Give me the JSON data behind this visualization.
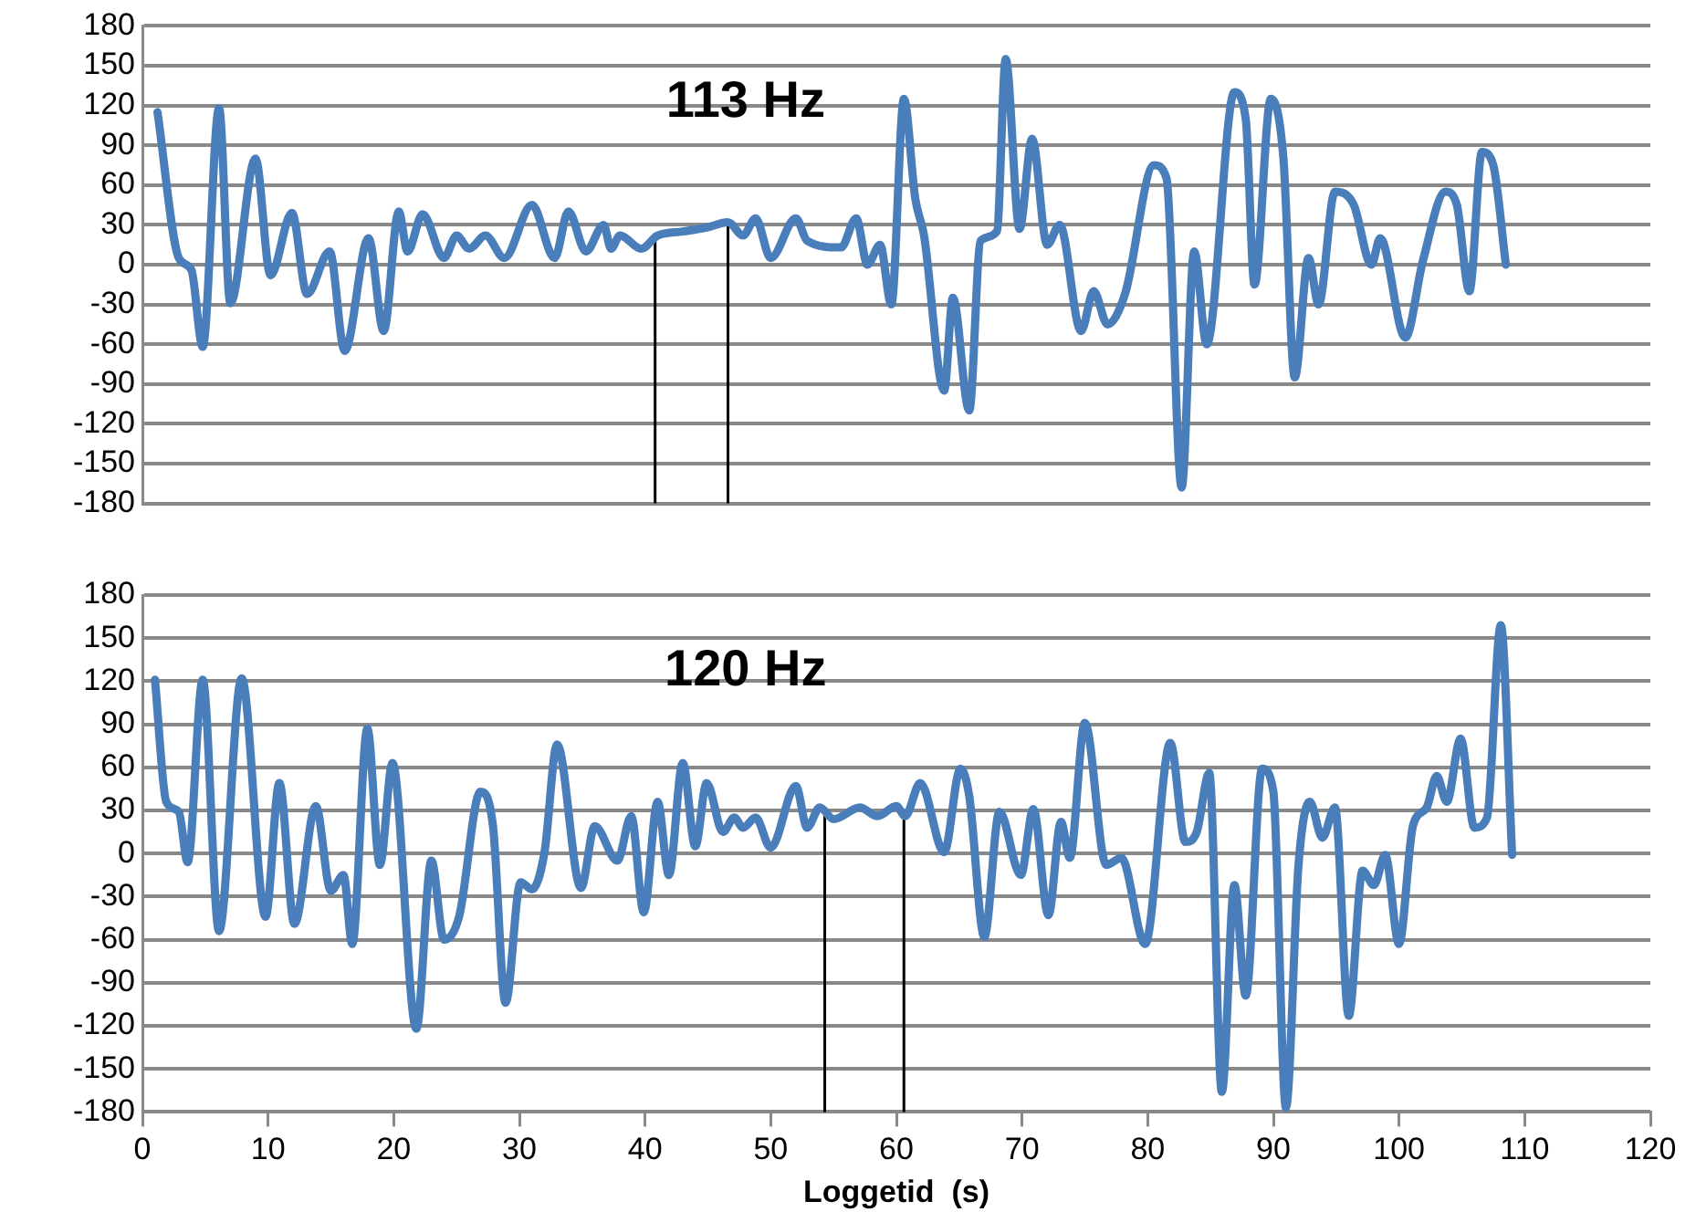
{
  "chart_data": [
    {
      "type": "line",
      "title": "113 Hz",
      "color": "#4a7ebb",
      "x": [
        1.2,
        2.9,
        3.9,
        4.8,
        6.1,
        7,
        9,
        10.2,
        11.9,
        13.1,
        14.9,
        16.1,
        18,
        19.2,
        20.4,
        21.1,
        22.3,
        24,
        25,
        26,
        27.3,
        28.8,
        31,
        32.8,
        33.9,
        35.3,
        36.7,
        37.3,
        38,
        39.7,
        41,
        43,
        44.9,
        46.6,
        47.8,
        48.8,
        50,
        52,
        52.9,
        55.6,
        56.8,
        57.7,
        58.7,
        59.6,
        60.6,
        61.5,
        62.2,
        63.8,
        64.5,
        65.8,
        66.7,
        68,
        68.7,
        69.8,
        70.8,
        72,
        73,
        74.7,
        75.7,
        76.8,
        78.2,
        80.5,
        81.5,
        82.7,
        83.7,
        84.7,
        86.9,
        87.8,
        88.5,
        89.8,
        90.8,
        91.7,
        92.8,
        93.6,
        94.9,
        96.4,
        97.8,
        98.5,
        100.5,
        101.9,
        103.7,
        104.6,
        105.6,
        106.6,
        107.5,
        108.5
      ],
      "values": [
        115,
        5,
        -4,
        -62,
        118,
        -29,
        80,
        -8,
        39,
        -22,
        10,
        -65,
        20,
        -50,
        40,
        10,
        38,
        5,
        22,
        12,
        22,
        5,
        45,
        5,
        40,
        10,
        30,
        12,
        22,
        12,
        22,
        25,
        28,
        32,
        22,
        35,
        5,
        35,
        18,
        13,
        35,
        0,
        15,
        -30,
        125,
        50,
        22,
        -95,
        -25,
        -110,
        18,
        25,
        155,
        27,
        95,
        15,
        30,
        -50,
        -20,
        -45,
        -22,
        75,
        65,
        -168,
        10,
        -60,
        130,
        110,
        -15,
        125,
        80,
        -85,
        5,
        -30,
        55,
        45,
        0,
        20,
        -55,
        3,
        55,
        45,
        -20,
        85,
        75,
        0
      ],
      "ylim": [
        -180,
        180
      ],
      "yticks": [
        -180,
        -150,
        -120,
        -90,
        -60,
        -30,
        0,
        30,
        60,
        90,
        120,
        150,
        180
      ],
      "xlim": [
        0,
        120
      ],
      "xticks": [
        0,
        10,
        20,
        30,
        40,
        50,
        60,
        70,
        80,
        90,
        100,
        110,
        120
      ],
      "grid": "y",
      "tick_labels": "y",
      "legend": false,
      "ref_lines": [
        {
          "axis": "x",
          "value": 40.8,
          "color": "#000000"
        },
        {
          "axis": "x",
          "value": 46.6,
          "color": "#000000"
        }
      ]
    },
    {
      "type": "line",
      "title": "120 Hz",
      "xlabel": "Loggetid  (s)",
      "color": "#4a7ebb",
      "x": [
        1,
        1.9,
        2.9,
        3.6,
        4.8,
        6.1,
        7.9,
        9.8,
        10.9,
        12.1,
        13.8,
        15,
        16,
        16.7,
        17.9,
        18.9,
        19.9,
        21.8,
        23,
        24,
        25.2,
        26.9,
        27.9,
        28.9,
        30.1,
        31,
        32,
        33,
        34.9,
        36,
        37.8,
        38.9,
        39.9,
        41,
        41.9,
        43,
        44,
        44.9,
        46.2,
        47.1,
        47.8,
        48.8,
        50,
        52,
        52.9,
        53.9,
        55,
        57.1,
        58.5,
        60,
        60.7,
        61.9,
        63.8,
        65.1,
        65.8,
        67,
        68.2,
        69.9,
        70.9,
        72.1,
        73.1,
        73.8,
        75,
        76.7,
        77.9,
        79.8,
        81.8,
        83,
        83.9,
        84.9,
        85.9,
        86.9,
        87.8,
        89.1,
        90,
        91,
        92,
        92.9,
        93.9,
        94.9,
        96,
        97.1,
        98,
        98.9,
        100,
        101.1,
        102.2,
        103,
        103.8,
        104.9,
        106,
        107,
        108.1,
        109
      ],
      "values": [
        121,
        36,
        29,
        -6,
        121,
        -54,
        122,
        -44,
        49,
        -49,
        33,
        -26,
        -15,
        -63,
        87,
        -8,
        63,
        -122,
        -5,
        -60,
        -44,
        43,
        19,
        -104,
        -20,
        -25,
        1,
        76,
        -24,
        19,
        -5,
        26,
        -41,
        36,
        -15,
        63,
        5,
        49,
        15,
        25,
        18,
        25,
        4,
        47,
        18,
        32,
        24,
        32,
        26,
        33,
        26,
        49,
        1,
        59,
        40,
        -58,
        29,
        -15,
        31,
        -43,
        22,
        -3,
        91,
        -8,
        -3,
        -63,
        77,
        8,
        15,
        56,
        -166,
        -22,
        -99,
        59,
        43,
        -177,
        -8,
        36,
        11,
        32,
        -113,
        -12,
        -22,
        -1,
        -63,
        19,
        32,
        54,
        36,
        80,
        18,
        25,
        159,
        -1
      ],
      "ylim": [
        -180,
        180
      ],
      "yticks": [
        -180,
        -150,
        -120,
        -90,
        -60,
        -30,
        0,
        30,
        60,
        90,
        120,
        150,
        180
      ],
      "xlim": [
        0,
        120
      ],
      "xticks": [
        0,
        10,
        20,
        30,
        40,
        50,
        60,
        70,
        80,
        90,
        100,
        110,
        120
      ],
      "grid": "y",
      "legend": false,
      "ref_lines": [
        {
          "axis": "x",
          "value": 54.3,
          "color": "#000000"
        },
        {
          "axis": "x",
          "value": 60.6,
          "color": "#000000"
        }
      ]
    }
  ]
}
